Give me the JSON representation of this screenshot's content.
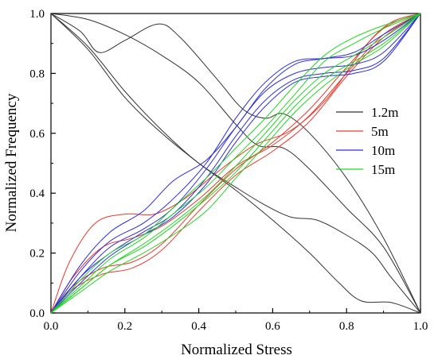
{
  "chart_data": {
    "type": "line",
    "xlabel": "Normalized Stress",
    "ylabel": "Normalized Frequency",
    "xlim": [
      0,
      1
    ],
    "ylim": [
      0,
      1
    ],
    "xticks": [
      "0.0",
      "0.2",
      "0.4",
      "0.6",
      "0.8",
      "1.0"
    ],
    "yticks": [
      "0.0",
      "0.2",
      "0.4",
      "0.6",
      "0.8",
      "1.0"
    ],
    "grid": false,
    "legend_position": "right",
    "groups": [
      {
        "name": "1.2m",
        "color": "#333333",
        "curves": [
          [
            [
              0,
              1.0
            ],
            [
              0.08,
              0.94
            ],
            [
              0.13,
              0.87
            ],
            [
              0.2,
              0.91
            ],
            [
              0.29,
              0.965
            ],
            [
              0.35,
              0.92
            ],
            [
              0.45,
              0.78
            ],
            [
              0.52,
              0.68
            ],
            [
              0.58,
              0.65
            ],
            [
              0.63,
              0.665
            ],
            [
              0.7,
              0.6
            ],
            [
              0.8,
              0.45
            ],
            [
              0.9,
              0.25
            ],
            [
              1.0,
              0.0
            ]
          ],
          [
            [
              0,
              1.0
            ],
            [
              0.1,
              0.98
            ],
            [
              0.2,
              0.93
            ],
            [
              0.3,
              0.86
            ],
            [
              0.4,
              0.77
            ],
            [
              0.5,
              0.63
            ],
            [
              0.56,
              0.56
            ],
            [
              0.63,
              0.55
            ],
            [
              0.7,
              0.48
            ],
            [
              0.8,
              0.35
            ],
            [
              0.9,
              0.22
            ],
            [
              1.0,
              0.0
            ]
          ],
          [
            [
              0,
              1.0
            ],
            [
              0.1,
              0.89
            ],
            [
              0.2,
              0.74
            ],
            [
              0.3,
              0.61
            ],
            [
              0.4,
              0.5
            ],
            [
              0.5,
              0.42
            ],
            [
              0.58,
              0.36
            ],
            [
              0.65,
              0.32
            ],
            [
              0.72,
              0.31
            ],
            [
              0.8,
              0.26
            ],
            [
              0.87,
              0.2
            ],
            [
              0.92,
              0.12
            ],
            [
              1.0,
              0.0
            ]
          ],
          [
            [
              0,
              1.0
            ],
            [
              0.1,
              0.88
            ],
            [
              0.2,
              0.72
            ],
            [
              0.3,
              0.6
            ],
            [
              0.4,
              0.5
            ],
            [
              0.5,
              0.41
            ],
            [
              0.6,
              0.31
            ],
            [
              0.7,
              0.2
            ],
            [
              0.78,
              0.1
            ],
            [
              0.84,
              0.04
            ],
            [
              0.92,
              0.035
            ],
            [
              1.0,
              0.0
            ]
          ]
        ]
      },
      {
        "name": "5m",
        "color": "#e8392c",
        "curves": [
          [
            [
              0,
              0
            ],
            [
              0.05,
              0.17
            ],
            [
              0.12,
              0.3
            ],
            [
              0.2,
              0.33
            ],
            [
              0.28,
              0.33
            ],
            [
              0.36,
              0.38
            ],
            [
              0.45,
              0.47
            ],
            [
              0.55,
              0.56
            ],
            [
              0.65,
              0.61
            ],
            [
              0.75,
              0.72
            ],
            [
              0.85,
              0.89
            ],
            [
              0.92,
              0.97
            ],
            [
              1.0,
              1.0
            ]
          ],
          [
            [
              0,
              0
            ],
            [
              0.06,
              0.12
            ],
            [
              0.14,
              0.22
            ],
            [
              0.22,
              0.25
            ],
            [
              0.3,
              0.29
            ],
            [
              0.4,
              0.38
            ],
            [
              0.5,
              0.49
            ],
            [
              0.6,
              0.56
            ],
            [
              0.7,
              0.66
            ],
            [
              0.8,
              0.8
            ],
            [
              0.9,
              0.93
            ],
            [
              1.0,
              1.0
            ]
          ],
          [
            [
              0,
              0
            ],
            [
              0.06,
              0.09
            ],
            [
              0.14,
              0.15
            ],
            [
              0.22,
              0.17
            ],
            [
              0.3,
              0.23
            ],
            [
              0.4,
              0.36
            ],
            [
              0.5,
              0.48
            ],
            [
              0.6,
              0.57
            ],
            [
              0.7,
              0.68
            ],
            [
              0.8,
              0.82
            ],
            [
              0.9,
              0.95
            ],
            [
              1.0,
              1.0
            ]
          ],
          [
            [
              0,
              0
            ],
            [
              0.06,
              0.08
            ],
            [
              0.14,
              0.13
            ],
            [
              0.22,
              0.15
            ],
            [
              0.3,
              0.21
            ],
            [
              0.4,
              0.34
            ],
            [
              0.5,
              0.46
            ],
            [
              0.6,
              0.54
            ],
            [
              0.7,
              0.64
            ],
            [
              0.8,
              0.79
            ],
            [
              0.9,
              0.92
            ],
            [
              1.0,
              1.0
            ]
          ]
        ]
      },
      {
        "name": "10m",
        "color": "#2d2de0",
        "curves": [
          [
            [
              0,
              0
            ],
            [
              0.08,
              0.16
            ],
            [
              0.16,
              0.27
            ],
            [
              0.25,
              0.34
            ],
            [
              0.33,
              0.44
            ],
            [
              0.42,
              0.51
            ],
            [
              0.5,
              0.62
            ],
            [
              0.58,
              0.75
            ],
            [
              0.66,
              0.83
            ],
            [
              0.74,
              0.85
            ],
            [
              0.82,
              0.87
            ],
            [
              0.9,
              0.93
            ],
            [
              1.0,
              1.0
            ]
          ],
          [
            [
              0,
              0
            ],
            [
              0.08,
              0.14
            ],
            [
              0.16,
              0.24
            ],
            [
              0.25,
              0.3
            ],
            [
              0.33,
              0.38
            ],
            [
              0.42,
              0.5
            ],
            [
              0.5,
              0.65
            ],
            [
              0.58,
              0.77
            ],
            [
              0.66,
              0.84
            ],
            [
              0.74,
              0.85
            ],
            [
              0.82,
              0.86
            ],
            [
              0.9,
              0.91
            ],
            [
              1.0,
              1.0
            ]
          ],
          [
            [
              0,
              0
            ],
            [
              0.08,
              0.12
            ],
            [
              0.16,
              0.22
            ],
            [
              0.25,
              0.28
            ],
            [
              0.33,
              0.35
            ],
            [
              0.42,
              0.48
            ],
            [
              0.5,
              0.62
            ],
            [
              0.58,
              0.74
            ],
            [
              0.66,
              0.8
            ],
            [
              0.74,
              0.82
            ],
            [
              0.82,
              0.83
            ],
            [
              0.9,
              0.87
            ],
            [
              1.0,
              1.0
            ]
          ],
          [
            [
              0,
              0
            ],
            [
              0.08,
              0.12
            ],
            [
              0.16,
              0.2
            ],
            [
              0.25,
              0.27
            ],
            [
              0.33,
              0.33
            ],
            [
              0.42,
              0.45
            ],
            [
              0.5,
              0.59
            ],
            [
              0.58,
              0.71
            ],
            [
              0.66,
              0.78
            ],
            [
              0.74,
              0.8
            ],
            [
              0.82,
              0.81
            ],
            [
              0.9,
              0.85
            ],
            [
              1.0,
              1.0
            ]
          ],
          [
            [
              0,
              0
            ],
            [
              0.08,
              0.1
            ],
            [
              0.16,
              0.19
            ],
            [
              0.25,
              0.26
            ],
            [
              0.33,
              0.32
            ],
            [
              0.42,
              0.43
            ],
            [
              0.5,
              0.57
            ],
            [
              0.58,
              0.69
            ],
            [
              0.66,
              0.77
            ],
            [
              0.74,
              0.79
            ],
            [
              0.82,
              0.8
            ],
            [
              0.9,
              0.84
            ],
            [
              1.0,
              1.0
            ]
          ]
        ]
      },
      {
        "name": "15m",
        "color": "#22d622",
        "curves": [
          [
            [
              0,
              0
            ],
            [
              0.08,
              0.11
            ],
            [
              0.16,
              0.2
            ],
            [
              0.25,
              0.26
            ],
            [
              0.33,
              0.35
            ],
            [
              0.42,
              0.45
            ],
            [
              0.5,
              0.55
            ],
            [
              0.58,
              0.65
            ],
            [
              0.66,
              0.76
            ],
            [
              0.74,
              0.86
            ],
            [
              0.82,
              0.92
            ],
            [
              0.9,
              0.96
            ],
            [
              1.0,
              1.0
            ]
          ],
          [
            [
              0,
              0
            ],
            [
              0.08,
              0.09
            ],
            [
              0.16,
              0.18
            ],
            [
              0.25,
              0.25
            ],
            [
              0.33,
              0.33
            ],
            [
              0.42,
              0.42
            ],
            [
              0.5,
              0.52
            ],
            [
              0.58,
              0.62
            ],
            [
              0.66,
              0.73
            ],
            [
              0.74,
              0.84
            ],
            [
              0.82,
              0.9
            ],
            [
              0.9,
              0.95
            ],
            [
              1.0,
              1.0
            ]
          ],
          [
            [
              0,
              0
            ],
            [
              0.08,
              0.08
            ],
            [
              0.16,
              0.16
            ],
            [
              0.25,
              0.23
            ],
            [
              0.33,
              0.3
            ],
            [
              0.42,
              0.39
            ],
            [
              0.5,
              0.49
            ],
            [
              0.58,
              0.6
            ],
            [
              0.66,
              0.71
            ],
            [
              0.74,
              0.8
            ],
            [
              0.82,
              0.86
            ],
            [
              0.9,
              0.92
            ],
            [
              1.0,
              1.0
            ]
          ],
          [
            [
              0,
              0
            ],
            [
              0.08,
              0.08
            ],
            [
              0.16,
              0.16
            ],
            [
              0.25,
              0.22
            ],
            [
              0.33,
              0.29
            ],
            [
              0.42,
              0.38
            ],
            [
              0.5,
              0.47
            ],
            [
              0.58,
              0.58
            ],
            [
              0.66,
              0.69
            ],
            [
              0.74,
              0.78
            ],
            [
              0.82,
              0.84
            ],
            [
              0.9,
              0.9
            ],
            [
              1.0,
              1.0
            ]
          ],
          [
            [
              0,
              0
            ],
            [
              0.08,
              0.07
            ],
            [
              0.16,
              0.14
            ],
            [
              0.25,
              0.2
            ],
            [
              0.33,
              0.26
            ],
            [
              0.42,
              0.34
            ],
            [
              0.5,
              0.45
            ],
            [
              0.58,
              0.56
            ],
            [
              0.66,
              0.67
            ],
            [
              0.74,
              0.76
            ],
            [
              0.82,
              0.83
            ],
            [
              0.9,
              0.89
            ],
            [
              1.0,
              1.0
            ]
          ]
        ]
      }
    ]
  }
}
